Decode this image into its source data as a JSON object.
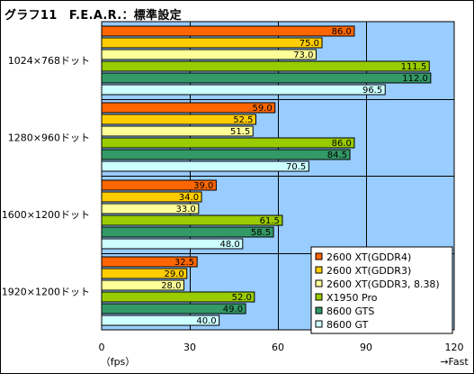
{
  "chart_data": {
    "type": "bar",
    "orientation": "horizontal",
    "title": "グラフ11　F.E.A.R.：標準設定",
    "xlabel": "（fps）",
    "x_end_label": "→Fast",
    "xlim": [
      0,
      120
    ],
    "xticks": [
      0,
      30,
      60,
      90,
      120
    ],
    "grid": true,
    "legend_position": "bottom-right",
    "categories": [
      "1024×768ドット",
      "1280×960ドット",
      "1600×1200ドット",
      "1920×1200ドット"
    ],
    "series": [
      {
        "name": "2600 XT(GDDR4)",
        "color": "#ff6600",
        "values": [
          86.0,
          59.0,
          39.0,
          32.5
        ]
      },
      {
        "name": "2600 XT(GDDR3)",
        "color": "#ffcc00",
        "values": [
          75.0,
          52.5,
          34.0,
          29.0
        ]
      },
      {
        "name": "2600 XT(GDDR3, 8.38)",
        "color": "#ffff99",
        "values": [
          73.0,
          51.5,
          33.0,
          28.0
        ]
      },
      {
        "name": "X1950 Pro",
        "color": "#99cc00",
        "values": [
          111.5,
          86.0,
          61.5,
          52.0
        ]
      },
      {
        "name": "8600 GTS",
        "color": "#339966",
        "values": [
          112.0,
          84.5,
          58.5,
          49.0
        ]
      },
      {
        "name": "8600 GT",
        "color": "#ccffff",
        "values": [
          96.5,
          70.5,
          48.0,
          40.0
        ]
      }
    ],
    "plot_background": "#99ccff"
  }
}
